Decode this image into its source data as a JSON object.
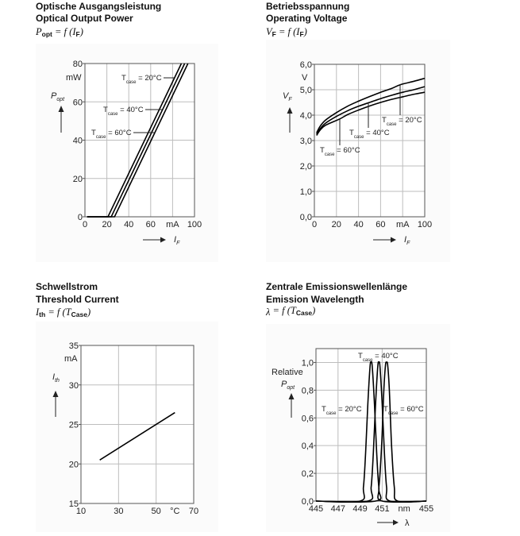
{
  "colors": {
    "curve": "#000000",
    "grid": "#bdbdbd",
    "frame": "#555555"
  },
  "panels": [
    {
      "title_de": "Optische Ausgangsleistung",
      "title_en": "Optical Output Power",
      "formula": {
        "lhs": "P",
        "lhs_sub": "opt",
        "mid": " = f (",
        "arg": "I",
        "arg_sub": "F",
        "end": ")"
      }
    },
    {
      "title_de": "Betriebsspannung",
      "title_en": "Operating Voltage",
      "formula": {
        "lhs": "V",
        "lhs_sub": "F",
        "mid": " = f (",
        "arg": "I",
        "arg_sub": "F",
        "end": ")"
      }
    },
    {
      "title_de": "Schwellstrom",
      "title_en": "Threshold Current",
      "formula": {
        "lhs": "I",
        "lhs_sub": "th",
        "mid": " = f (",
        "arg": "T",
        "arg_sub": "Case",
        "end": ")"
      }
    },
    {
      "title_de": "Zentrale Emissionswellenlänge",
      "title_en": "Emission Wavelength",
      "formula": {
        "lhs": "λ",
        "lhs_sub": "",
        "mid": " = f (",
        "arg": "T",
        "arg_sub": "Case",
        "end": ")"
      }
    }
  ],
  "chart_data": [
    {
      "type": "line",
      "xlabel": "I",
      "xlabel_sub": "F",
      "ylabel": "P",
      "ylabel_sub": "opt",
      "xlim": [
        0,
        100
      ],
      "ylim": [
        0,
        80
      ],
      "x_ticks": [
        0,
        20,
        40,
        60,
        80,
        100
      ],
      "x_tick_labels": [
        "0",
        "20",
        "40",
        "60",
        "mA",
        "100"
      ],
      "y_ticks": [
        0,
        20,
        40,
        60,
        80
      ],
      "y_tick_labels": [
        "0",
        "20",
        "40",
        "60",
        "80"
      ],
      "y_unit": "mW",
      "grid": true,
      "series": [
        {
          "name": "T = 20°C",
          "label": "T",
          "label_sub": "case",
          "label_rest": " = 20°C",
          "x": [
            2,
            21,
            88
          ],
          "y": [
            0,
            0,
            80
          ]
        },
        {
          "name": "T = 40°C",
          "label": "T",
          "label_sub": "case",
          "label_rest": " = 40°C",
          "x": [
            2,
            24,
            91
          ],
          "y": [
            0,
            0,
            80
          ]
        },
        {
          "name": "T = 60°C",
          "label": "T",
          "label_sub": "case",
          "label_rest": " = 60°C",
          "x": [
            2,
            27,
            94
          ],
          "y": [
            0,
            0,
            80
          ]
        }
      ]
    },
    {
      "type": "line",
      "xlabel": "I",
      "xlabel_sub": "F",
      "ylabel": "V",
      "ylabel_sub": "F",
      "xlim": [
        0,
        100
      ],
      "ylim": [
        0,
        6
      ],
      "x_ticks": [
        0,
        20,
        40,
        60,
        80,
        100
      ],
      "x_tick_labels": [
        "0",
        "20",
        "40",
        "60",
        "mA",
        "100"
      ],
      "y_ticks": [
        0,
        1,
        2,
        3,
        4,
        5,
        6
      ],
      "y_tick_labels": [
        "0,0",
        "1,0",
        "2,0",
        "3,0",
        "4,0",
        "5,0",
        "6,0"
      ],
      "y_unit": "V",
      "grid": true,
      "series": [
        {
          "name": "T = 20°C",
          "label": "T",
          "label_sub": "case",
          "label_rest": " = 20°C",
          "x": [
            2,
            5,
            10,
            20,
            30,
            40,
            50,
            60,
            70,
            78,
            90,
            100
          ],
          "y": [
            3.3,
            3.55,
            3.8,
            4.1,
            4.35,
            4.55,
            4.73,
            4.9,
            5.05,
            5.2,
            5.33,
            5.45
          ]
        },
        {
          "name": "T = 40°C",
          "label": "T",
          "label_sub": "case",
          "label_rest": " = 40°C",
          "x": [
            2,
            5,
            10,
            20,
            30,
            40,
            50,
            60,
            70,
            80,
            90,
            100
          ],
          "y": [
            3.25,
            3.45,
            3.68,
            3.95,
            4.17,
            4.35,
            4.5,
            4.65,
            4.78,
            4.9,
            5.0,
            5.12
          ]
        },
        {
          "name": "T = 60°C",
          "label": "T",
          "label_sub": "case",
          "label_rest": " = 60°C",
          "x": [
            2,
            5,
            10,
            23,
            30,
            40,
            50,
            60,
            70,
            80,
            90,
            100
          ],
          "y": [
            3.2,
            3.4,
            3.6,
            3.85,
            4.02,
            4.2,
            4.36,
            4.5,
            4.62,
            4.72,
            4.82,
            4.9
          ]
        }
      ]
    },
    {
      "type": "line",
      "xlabel": "",
      "ylabel": "I",
      "ylabel_sub": "th",
      "xlim": [
        10,
        70
      ],
      "ylim": [
        15,
        35
      ],
      "x_ticks": [
        10,
        30,
        50,
        60,
        70
      ],
      "x_tick_labels": [
        "10",
        "30",
        "50",
        "°C",
        "70"
      ],
      "y_ticks": [
        15,
        20,
        25,
        30,
        35
      ],
      "y_tick_labels": [
        "15",
        "20",
        "25",
        "30",
        "35"
      ],
      "y_unit": "mA",
      "grid": true,
      "series": [
        {
          "x": [
            20,
            60
          ],
          "y": [
            20.5,
            26.5
          ]
        }
      ]
    },
    {
      "type": "line",
      "xlabel": "λ",
      "ylabel": "Relative",
      "ylabel2": "P",
      "ylabel2_sub": "opt",
      "xlim": [
        445,
        455
      ],
      "ylim": [
        0,
        1.1
      ],
      "x_ticks": [
        445,
        447,
        449,
        451,
        453,
        455
      ],
      "x_tick_labels": [
        "445",
        "447",
        "449",
        "451",
        "nm",
        "455"
      ],
      "y_ticks": [
        0,
        0.2,
        0.4,
        0.6,
        0.8,
        1.0
      ],
      "y_tick_labels": [
        "0,0",
        "0,2",
        "0,4",
        "0,6",
        "0,8",
        "1,0"
      ],
      "grid": true,
      "series": [
        {
          "name": "T = 20°C",
          "label": "T",
          "label_sub": "case",
          "label_rest": " = 20°C",
          "x": [
            445,
            449,
            449.3,
            449.5,
            449.7,
            449.9,
            450.0,
            450.1,
            450.3,
            450.5,
            450.7,
            451,
            455
          ],
          "y": [
            0,
            0,
            0.1,
            0.35,
            0.7,
            0.97,
            1.0,
            0.97,
            0.7,
            0.35,
            0.1,
            0,
            0
          ]
        },
        {
          "name": "T = 40°C",
          "label": "T",
          "label_sub": "case",
          "label_rest": " = 40°C",
          "x": [
            445,
            449.7,
            450.0,
            450.2,
            450.4,
            450.6,
            450.7,
            450.8,
            451.0,
            451.2,
            451.4,
            451.7,
            455
          ],
          "y": [
            0,
            0,
            0.1,
            0.35,
            0.7,
            0.97,
            1.0,
            0.97,
            0.7,
            0.35,
            0.1,
            0,
            0
          ]
        },
        {
          "name": "T = 60°C",
          "label": "T",
          "label_sub": "case",
          "label_rest": " = 60°C",
          "x": [
            445,
            450.4,
            450.7,
            450.95,
            451.15,
            451.3,
            451.4,
            451.5,
            451.65,
            451.85,
            452.1,
            452.4,
            455
          ],
          "y": [
            0,
            0,
            0.1,
            0.4,
            0.8,
            0.98,
            1.0,
            0.98,
            0.8,
            0.4,
            0.1,
            0,
            0
          ]
        }
      ]
    }
  ]
}
